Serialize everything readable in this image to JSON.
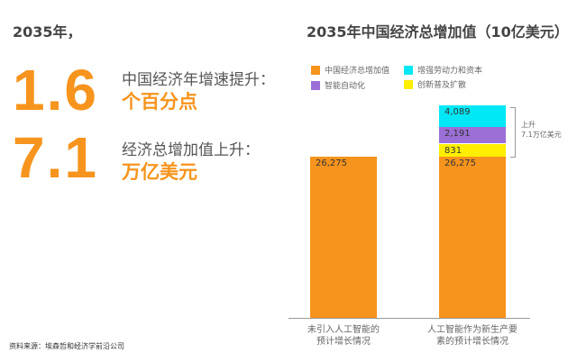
{
  "intro": "2035年，",
  "stats": [
    {
      "value": "1.6",
      "label": "中国经济年增速提升：",
      "unit": "个百分点"
    },
    {
      "value": "7.1",
      "label": "经济总增加值上升：",
      "unit": "万亿美元"
    }
  ],
  "source": "资料来源：埃森哲和经济学前沿公司",
  "chart_data": {
    "type": "bar",
    "stacked": true,
    "title": "2035年中国经济总增加值（10亿美元）",
    "categories": [
      "未引入人工智能的预计增长情况",
      "人工智能作为新生产要素的预计增长情况"
    ],
    "category_lines": [
      [
        "未引入人工智能的",
        "预计增长情况"
      ],
      [
        "人工智能作为新生产要",
        "素的预计增长情况"
      ]
    ],
    "series": [
      {
        "name": "中国经济总增加值",
        "color": "#f7941d",
        "values": [
          26275,
          26275
        ],
        "labels": [
          "26,275",
          "26,275"
        ]
      },
      {
        "name": "创新普及扩散",
        "color": "#ffee00",
        "values": [
          null,
          831
        ],
        "labels": [
          "",
          "831"
        ]
      },
      {
        "name": "智能自动化",
        "color": "#9b6fd6",
        "values": [
          null,
          2191
        ],
        "labels": [
          "",
          "2,191"
        ]
      },
      {
        "name": "增强劳动力和资本",
        "color": "#00e8f5",
        "values": [
          null,
          4089
        ],
        "labels": [
          "",
          "4,089"
        ]
      }
    ],
    "legend_order": [
      "中国经济总增加值",
      "增强劳动力和资本",
      "智能自动化",
      "创新普及扩散"
    ],
    "legend_position": "top",
    "annotation": [
      "上升",
      "7.1万亿美元"
    ],
    "grid": false
  }
}
